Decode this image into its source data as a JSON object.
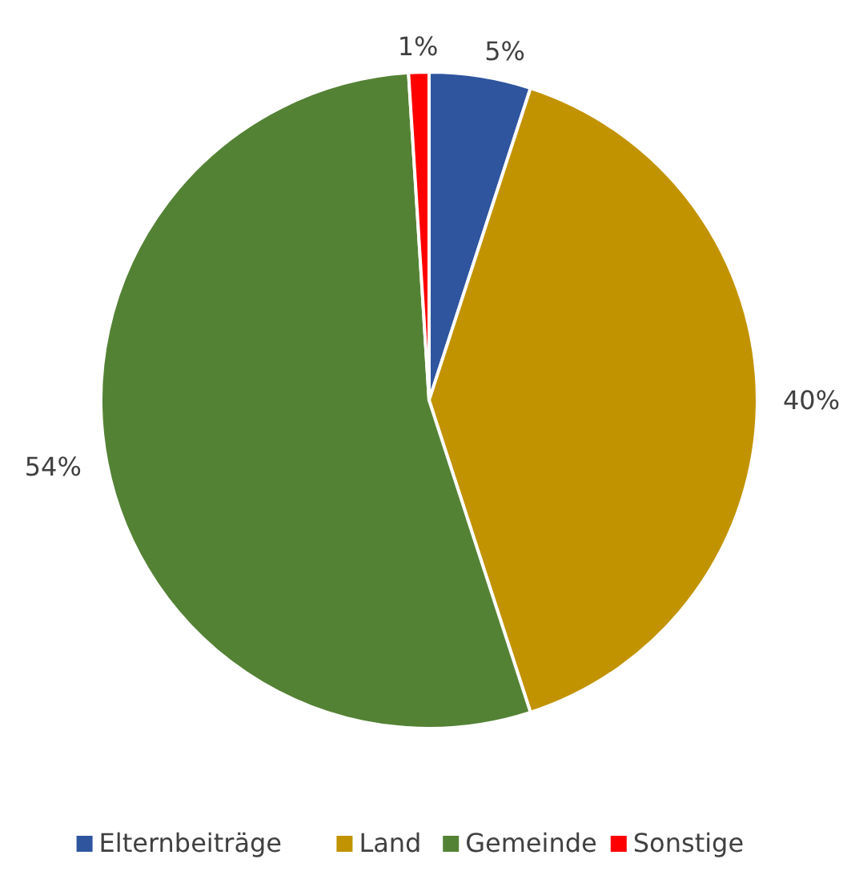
{
  "chart_data": {
    "type": "pie",
    "categories": [
      "Elternbeiträge",
      "Land",
      "Gemeinde",
      "Sonstige"
    ],
    "values": [
      5,
      40,
      54,
      1
    ],
    "colors": [
      "#2f559f",
      "#c29300",
      "#548235",
      "#ff0000"
    ],
    "value_labels": [
      "5%",
      "40%",
      "54%",
      "1%"
    ],
    "legend": "bottom"
  }
}
